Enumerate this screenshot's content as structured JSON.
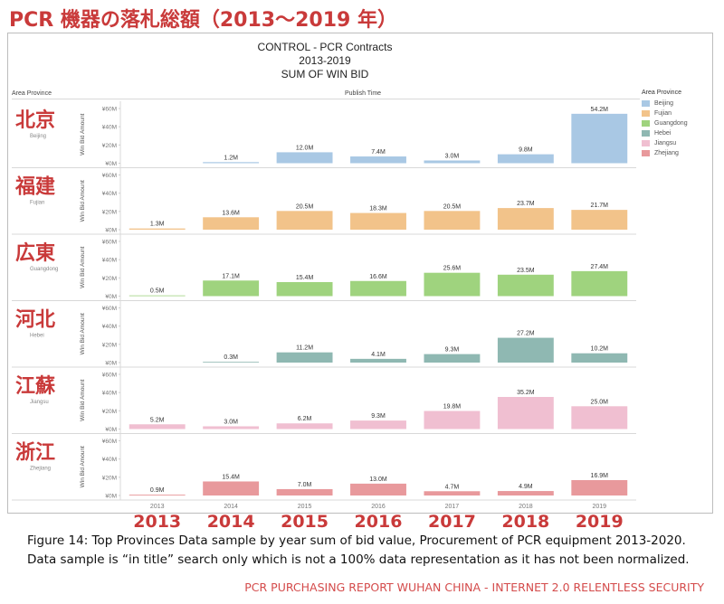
{
  "page_title": "PCR 機器の落札総額（2013〜2019 年）",
  "chart_data": {
    "type": "bar",
    "title": "CONTROL - PCR Contracts",
    "subtitle": "2013-2019",
    "measure": "SUM OF WIN BID",
    "row_header": "Area Province",
    "column_header": "Publish Time",
    "ylabel": "Win Bid Amount",
    "ylim": [
      0,
      60
    ],
    "y_ticks": [
      "¥0M",
      "¥20M",
      "¥40M",
      "¥60M"
    ],
    "y_tick_values": [
      0,
      20,
      40,
      60
    ],
    "categories": [
      "2013",
      "2014",
      "2015",
      "2016",
      "2017",
      "2018",
      "2019"
    ],
    "legend_title": "Area Province",
    "series": [
      {
        "name": "Beijing",
        "cjk": "北京",
        "color": "#a9c8e4",
        "values": [
          null,
          1.2,
          12.0,
          7.4,
          3.0,
          9.8,
          54.2
        ],
        "labels": [
          "",
          "1.2M",
          "12.0M",
          "7.4M",
          "3.0M",
          "9.8M",
          "54.2M"
        ]
      },
      {
        "name": "Fujian",
        "cjk": "福建",
        "color": "#f2c38a",
        "values": [
          1.3,
          13.6,
          20.5,
          18.3,
          20.5,
          23.7,
          21.7
        ],
        "labels": [
          "1.3M",
          "13.6M",
          "20.5M",
          "18.3M",
          "20.5M",
          "23.7M",
          "21.7M"
        ]
      },
      {
        "name": "Guangdong",
        "cjk": "広東",
        "color": "#9fd37e",
        "values": [
          0.5,
          17.1,
          15.4,
          16.6,
          25.6,
          23.5,
          27.4
        ],
        "labels": [
          "0.5M",
          "17.1M",
          "15.4M",
          "16.6M",
          "25.6M",
          "23.5M",
          "27.4M"
        ]
      },
      {
        "name": "Hebei",
        "cjk": "河北",
        "color": "#8fb8b2",
        "values": [
          null,
          0.3,
          11.2,
          4.1,
          9.3,
          27.2,
          10.2
        ],
        "labels": [
          "",
          "0.3M",
          "11.2M",
          "4.1M",
          "9.3M",
          "27.2M",
          "10.2M"
        ]
      },
      {
        "name": "Jiangsu",
        "cjk": "江蘇",
        "color": "#f0bfd1",
        "values": [
          5.2,
          3.0,
          6.2,
          9.3,
          19.8,
          35.2,
          25.0
        ],
        "labels": [
          "5.2M",
          "3.0M",
          "6.2M",
          "9.3M",
          "19.8M",
          "35.2M",
          "25.0M"
        ]
      },
      {
        "name": "Zhejiang",
        "cjk": "浙江",
        "color": "#e8999c",
        "values": [
          0.9,
          15.4,
          7.0,
          13.0,
          4.7,
          4.9,
          16.9
        ],
        "labels": [
          "0.9M",
          "15.4M",
          "7.0M",
          "13.0M",
          "4.7M",
          "4.9M",
          "16.9M"
        ]
      }
    ]
  },
  "years_large": [
    "2013",
    "2014",
    "2015",
    "2016",
    "2017",
    "2018",
    "2019"
  ],
  "caption_line1": "Figure 14: Top Provinces Data sample by year sum of bid value, Procurement of PCR equipment 2013-2020.",
  "caption_line2": "Data sample is “in title” search only which is not a 100% data representation as it has not been normalized.",
  "footer": "PCR PURCHASING REPORT WUHAN CHINA - INTERNET 2.0 RELENTLESS SECURITY"
}
